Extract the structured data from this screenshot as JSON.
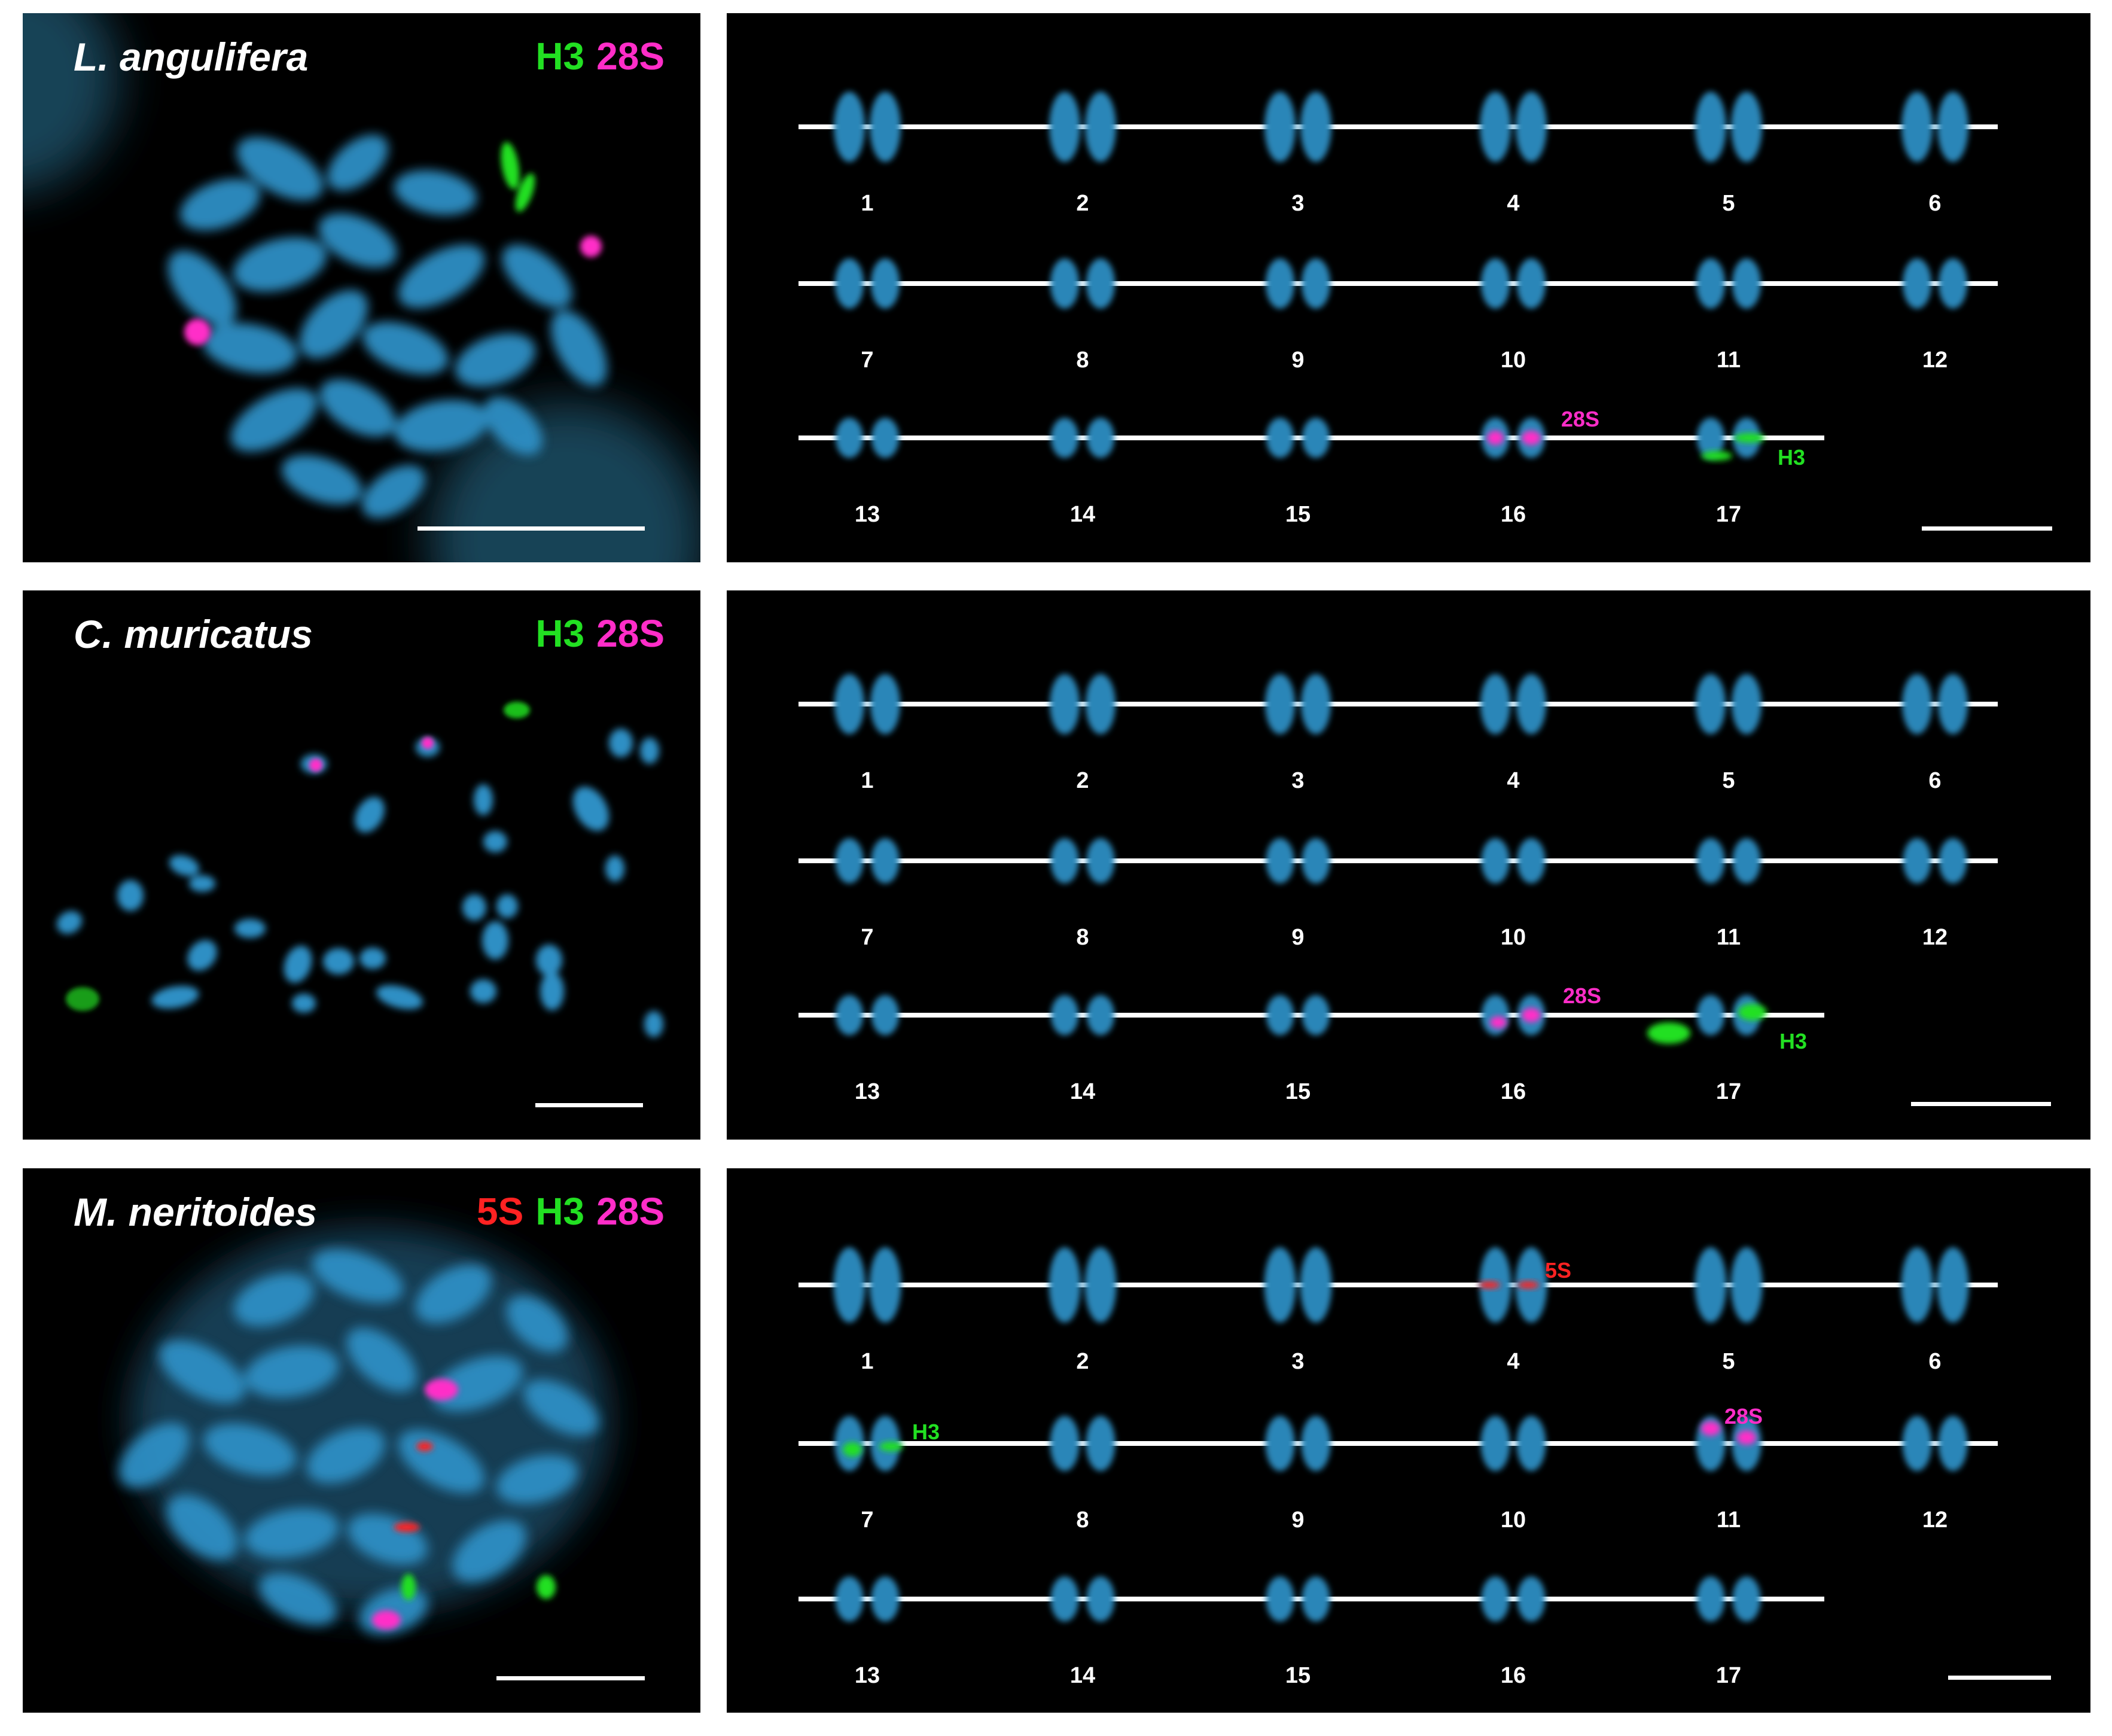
{
  "colors": {
    "H3": "#22e022",
    "28S": "#ff2dc8",
    "5S": "#ff2222",
    "dapi": "#2a86b8"
  },
  "panels": [
    {
      "species": "L. angulifera",
      "probes": [
        "H3",
        "28S"
      ],
      "karyotype": {
        "row1": [
          "1",
          "2",
          "3",
          "4",
          "5",
          "6"
        ],
        "row2": [
          "7",
          "8",
          "9",
          "10",
          "11",
          "12"
        ],
        "row3": [
          "13",
          "14",
          "15",
          "16",
          "17"
        ]
      },
      "signals": {
        "s28": "28S",
        "h3": "H3"
      }
    },
    {
      "species": "C. muricatus",
      "probes": [
        "H3",
        "28S"
      ],
      "karyotype": {
        "row1": [
          "1",
          "2",
          "3",
          "4",
          "5",
          "6"
        ],
        "row2": [
          "7",
          "8",
          "9",
          "10",
          "11",
          "12"
        ],
        "row3": [
          "13",
          "14",
          "15",
          "16",
          "17"
        ]
      },
      "signals": {
        "s28": "28S",
        "h3": "H3"
      }
    },
    {
      "species": "M. neritoides",
      "probes": [
        "5S",
        "H3",
        "28S"
      ],
      "karyotype": {
        "row1": [
          "1",
          "2",
          "3",
          "4",
          "5",
          "6"
        ],
        "row2": [
          "7",
          "8",
          "9",
          "10",
          "11",
          "12"
        ],
        "row3": [
          "13",
          "14",
          "15",
          "16",
          "17"
        ]
      },
      "signals": {
        "s5": "5S",
        "h3": "H3",
        "s28": "28S"
      }
    }
  ]
}
